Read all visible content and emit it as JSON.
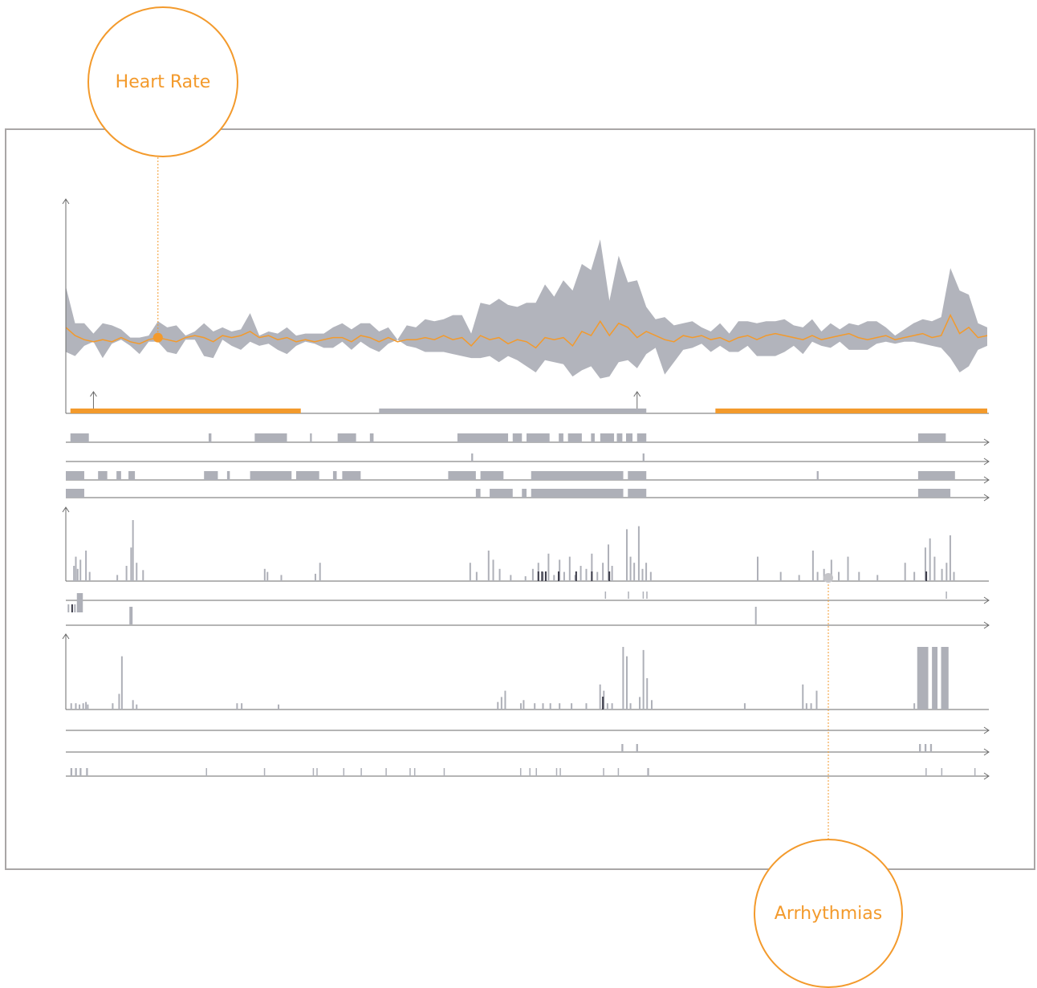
{
  "callouts": {
    "heart_rate": "Heart Rate",
    "arrhythmias": "Arrhythmias"
  },
  "colors": {
    "accent": "#f39a2c",
    "band": "#aeb0b8",
    "bar": "#aeb0b8",
    "dark_bar": "#3a3a48",
    "axis": "#6b6b6b",
    "frame": "#a9a6a6"
  },
  "chart_data": [
    {
      "type": "area",
      "name": "heart-rate",
      "x_range": [
        0,
        100
      ],
      "y_range": [
        0,
        100
      ],
      "band_low": [
        30,
        28,
        33,
        35,
        27,
        34,
        36,
        33,
        29,
        35,
        35,
        30,
        29,
        36,
        36,
        28,
        27,
        36,
        33,
        31,
        35,
        33,
        34,
        31,
        29,
        33,
        35,
        34,
        32,
        32,
        35,
        31,
        35,
        32,
        30,
        34,
        36,
        33,
        32,
        30,
        30,
        30,
        29,
        28,
        27,
        27,
        28,
        25,
        28,
        26,
        23,
        20,
        26,
        25,
        24,
        18,
        21,
        23,
        17,
        18,
        25,
        26,
        22,
        29,
        32,
        19,
        25,
        31,
        32,
        34,
        30,
        33,
        30,
        30,
        33,
        28,
        28,
        28,
        30,
        33,
        29,
        35,
        33,
        32,
        35,
        31,
        31,
        31,
        34,
        35,
        34,
        35,
        35,
        34,
        33,
        32,
        27,
        20,
        23,
        31,
        33
      ],
      "band_high": [
        62,
        44,
        44,
        39,
        44,
        43,
        41,
        37,
        37,
        38,
        45,
        42,
        43,
        38,
        40,
        44,
        40,
        42,
        40,
        41,
        49,
        38,
        40,
        39,
        42,
        38,
        39,
        39,
        39,
        42,
        44,
        41,
        44,
        44,
        40,
        42,
        36,
        43,
        42,
        46,
        45,
        46,
        48,
        48,
        39,
        54,
        53,
        56,
        53,
        52,
        54,
        54,
        63,
        57,
        65,
        60,
        73,
        70,
        85,
        55,
        77,
        64,
        65,
        52,
        46,
        47,
        43,
        44,
        45,
        42,
        40,
        44,
        39,
        45,
        45,
        44,
        45,
        45,
        46,
        43,
        42,
        46,
        40,
        44,
        41,
        44,
        43,
        45,
        45,
        42,
        38,
        41,
        44,
        46,
        45,
        47,
        71,
        60,
        58,
        44,
        42
      ],
      "line": [
        42,
        38,
        36,
        35,
        36,
        35,
        37,
        35,
        34,
        36,
        37,
        36,
        35,
        37,
        38,
        37,
        35,
        38,
        37,
        38,
        40,
        37,
        38,
        36,
        37,
        35,
        36,
        35,
        36,
        37,
        37,
        35,
        38,
        37,
        35,
        37,
        35,
        36,
        36,
        37,
        36,
        38,
        36,
        37,
        33,
        38,
        36,
        37,
        34,
        36,
        35,
        32,
        37,
        36,
        37,
        33,
        40,
        38,
        45,
        38,
        44,
        42,
        37,
        40,
        38,
        36,
        35,
        38,
        37,
        38,
        36,
        37,
        35,
        37,
        38,
        36,
        38,
        39,
        38,
        37,
        36,
        38,
        36,
        37,
        38,
        39,
        37,
        36,
        37,
        38,
        36,
        37,
        38,
        39,
        37,
        38,
        48,
        39,
        42,
        37,
        38
      ],
      "marker_index": 10,
      "small_up_arrows_x": [
        3.0,
        62.0
      ],
      "segments": [
        {
          "start": 0.5,
          "end": 25.5,
          "color": "#f39a2c"
        },
        {
          "start": 34.0,
          "end": 63.0,
          "color": "#aeb0b8"
        },
        {
          "start": 70.5,
          "end": 100.0,
          "color": "#f39a2c"
        }
      ]
    },
    {
      "type": "bar",
      "name": "event-tracks-1",
      "tracks": [
        [
          [
            0.5,
            2.5
          ],
          [
            15.5,
            15.8
          ],
          [
            20.5,
            24.0
          ],
          [
            26.5,
            26.7
          ],
          [
            29.5,
            31.5
          ],
          [
            33.0,
            33.4
          ],
          [
            42.5,
            48.0
          ],
          [
            48.5,
            49.5
          ],
          [
            50.0,
            52.5
          ],
          [
            53.5,
            54.0
          ],
          [
            54.5,
            56.0
          ],
          [
            57.0,
            57.4
          ],
          [
            58.0,
            59.5
          ],
          [
            59.8,
            60.4
          ],
          [
            60.8,
            61.5
          ],
          [
            62.0,
            63.0
          ],
          [
            92.5,
            95.5
          ]
        ],
        [
          [
            44.0,
            44.2
          ],
          [
            62.6,
            62.8
          ]
        ],
        [
          [
            0.0,
            2.0
          ],
          [
            3.5,
            4.5
          ],
          [
            5.5,
            6.0
          ],
          [
            6.8,
            7.5
          ],
          [
            15.0,
            16.5
          ],
          [
            17.5,
            17.8
          ],
          [
            20.0,
            24.5
          ],
          [
            25.0,
            27.5
          ],
          [
            29.0,
            29.4
          ],
          [
            30.0,
            32.0
          ],
          [
            41.5,
            44.5
          ],
          [
            45.0,
            47.5
          ],
          [
            50.5,
            60.5
          ],
          [
            61.0,
            63.0
          ],
          [
            81.5,
            81.7
          ],
          [
            92.5,
            96.5
          ]
        ],
        [
          [
            0.0,
            2.0
          ],
          [
            44.5,
            45.0
          ],
          [
            46.0,
            48.5
          ],
          [
            49.5,
            50.0
          ],
          [
            50.5,
            60.5
          ],
          [
            61.0,
            63.0
          ],
          [
            92.5,
            96.0
          ]
        ]
      ]
    },
    {
      "type": "bar",
      "name": "arrhythmias",
      "ylim": [
        0,
        100
      ],
      "bars": [
        [
          0.8,
          25
        ],
        [
          1.0,
          40
        ],
        [
          1.2,
          20
        ],
        [
          1.5,
          35
        ],
        [
          2.1,
          50
        ],
        [
          2.5,
          15
        ],
        [
          5.5,
          10
        ],
        [
          6.5,
          25
        ],
        [
          7.0,
          55
        ],
        [
          7.2,
          100
        ],
        [
          7.6,
          30
        ],
        [
          8.3,
          18
        ],
        [
          21.5,
          20
        ],
        [
          21.8,
          15
        ],
        [
          23.3,
          10
        ],
        [
          27.0,
          12
        ],
        [
          27.5,
          30
        ],
        [
          43.8,
          30
        ],
        [
          44.5,
          15
        ],
        [
          45.8,
          50
        ],
        [
          46.3,
          35
        ],
        [
          47.0,
          20
        ],
        [
          48.2,
          10
        ],
        [
          49.8,
          8
        ],
        [
          50.6,
          20
        ],
        [
          51.2,
          30
        ],
        [
          51.7,
          15
        ],
        [
          52.3,
          45
        ],
        [
          52.9,
          10
        ],
        [
          53.5,
          35
        ],
        [
          54.0,
          15
        ],
        [
          54.6,
          40
        ],
        [
          55.2,
          10
        ],
        [
          55.8,
          25
        ],
        [
          56.4,
          20
        ],
        [
          57.0,
          45
        ],
        [
          57.6,
          15
        ],
        [
          58.2,
          30
        ],
        [
          58.8,
          60
        ],
        [
          59.2,
          25
        ],
        [
          60.8,
          85
        ],
        [
          61.2,
          40
        ],
        [
          61.6,
          30
        ],
        [
          62.1,
          90
        ],
        [
          62.5,
          20
        ],
        [
          62.9,
          30
        ],
        [
          63.4,
          15
        ],
        [
          75.0,
          40
        ],
        [
          77.5,
          15
        ],
        [
          79.5,
          10
        ],
        [
          81.0,
          50
        ],
        [
          81.5,
          15
        ],
        [
          82.2,
          20
        ],
        [
          83.0,
          35
        ],
        [
          83.8,
          15
        ],
        [
          84.8,
          40
        ],
        [
          86.0,
          15
        ],
        [
          88.0,
          10
        ],
        [
          91.0,
          30
        ],
        [
          92.0,
          15
        ],
        [
          93.2,
          55
        ],
        [
          93.7,
          70
        ],
        [
          94.2,
          40
        ],
        [
          95.0,
          20
        ],
        [
          95.5,
          30
        ],
        [
          95.9,
          75
        ],
        [
          96.3,
          15
        ]
      ],
      "dark_bars": [
        51.2,
        51.6,
        52.0,
        53.4,
        55.3,
        57.0,
        58.9,
        93.3
      ],
      "ticks_row_a": [
        58.5,
        61.0,
        62.6,
        63.0
      ],
      "ticks_row_a_right": [
        95.5
      ],
      "ticks_row_b": [
        6.9,
        74.8
      ],
      "left_cluster": [
        0.2,
        0.6,
        0.9,
        1.2,
        1.5
      ]
    },
    {
      "type": "bar",
      "name": "events-lower",
      "ylim": [
        0,
        100
      ],
      "bars": [
        [
          0.5,
          10
        ],
        [
          1.0,
          10
        ],
        [
          1.4,
          8
        ],
        [
          1.8,
          10
        ],
        [
          2.1,
          12
        ],
        [
          2.3,
          8
        ],
        [
          5.0,
          10
        ],
        [
          5.7,
          25
        ],
        [
          6.0,
          85
        ],
        [
          7.2,
          15
        ],
        [
          7.6,
          8
        ],
        [
          18.5,
          10
        ],
        [
          19.0,
          10
        ],
        [
          23.0,
          8
        ],
        [
          46.8,
          12
        ],
        [
          47.2,
          20
        ],
        [
          47.6,
          30
        ],
        [
          49.3,
          10
        ],
        [
          49.6,
          15
        ],
        [
          50.8,
          10
        ],
        [
          51.7,
          10
        ],
        [
          52.5,
          10
        ],
        [
          53.5,
          10
        ],
        [
          54.8,
          10
        ],
        [
          56.4,
          10
        ],
        [
          57.9,
          40
        ],
        [
          58.3,
          30
        ],
        [
          58.7,
          10
        ],
        [
          59.2,
          10
        ],
        [
          60.4,
          100
        ],
        [
          60.8,
          85
        ],
        [
          61.2,
          10
        ],
        [
          62.2,
          20
        ],
        [
          62.6,
          95
        ],
        [
          63.0,
          50
        ],
        [
          63.5,
          15
        ],
        [
          73.6,
          10
        ],
        [
          79.9,
          40
        ],
        [
          80.3,
          10
        ],
        [
          80.8,
          10
        ],
        [
          81.4,
          30
        ],
        [
          92.0,
          10
        ],
        [
          95.0,
          100
        ]
      ],
      "solid_blocks": [
        [
          92.4,
          93.6
        ],
        [
          94.0,
          94.6
        ],
        [
          95.0,
          95.8
        ]
      ],
      "dark_bars": [
        58.2
      ],
      "track_rows": [
        [],
        [
          [
            60.3,
            60.5
          ],
          [
            61.9,
            62.1
          ],
          [
            92.6,
            92.8
          ],
          [
            93.2,
            93.4
          ],
          [
            93.8,
            94.0
          ]
        ],
        [
          [
            0.5,
            0.7
          ],
          [
            1.0,
            1.2
          ],
          [
            1.5,
            1.7
          ],
          [
            2.2,
            2.4
          ],
          [
            15.2,
            15.3
          ],
          [
            21.5,
            21.6
          ],
          [
            26.8,
            26.9
          ],
          [
            27.2,
            27.3
          ],
          [
            30.1,
            30.2
          ],
          [
            32.0,
            32.1
          ],
          [
            34.7,
            34.8
          ],
          [
            37.3,
            37.4
          ],
          [
            37.8,
            37.9
          ],
          [
            41.0,
            41.1
          ],
          [
            49.3,
            49.4
          ],
          [
            50.3,
            50.4
          ],
          [
            51.0,
            51.1
          ],
          [
            53.2,
            53.3
          ],
          [
            53.6,
            53.7
          ],
          [
            58.3,
            58.4
          ],
          [
            59.9,
            60.0
          ],
          [
            63.1,
            63.3
          ],
          [
            93.3,
            93.4
          ],
          [
            95.0,
            95.1
          ],
          [
            98.6,
            98.7
          ]
        ]
      ]
    }
  ]
}
